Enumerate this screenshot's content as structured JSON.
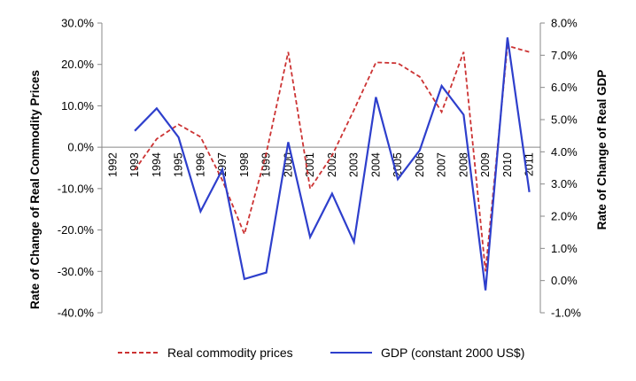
{
  "chart_data": {
    "type": "line",
    "categories": [
      "1992",
      "1993",
      "1994",
      "1995",
      "1996",
      "1997",
      "1998",
      "1999",
      "2000",
      "2001",
      "2002",
      "2003",
      "2004",
      "2005",
      "2006",
      "2007",
      "2008",
      "2009",
      "2010",
      "2011"
    ],
    "series": [
      {
        "name": "Real commodity prices",
        "axis": "left",
        "style": "dashed",
        "color": "#cc3333",
        "values": [
          null,
          -5.5,
          2.0,
          5.5,
          2.5,
          -8.0,
          -21.0,
          -1.5,
          23.0,
          -10.0,
          -2.0,
          9.0,
          20.5,
          20.3,
          17.0,
          8.5,
          23.0,
          -30.0,
          24.5,
          23.0
        ]
      },
      {
        "name": "GDP (constant 2000 US$)",
        "axis": "right",
        "style": "solid",
        "color": "#2e3fcc",
        "values": [
          null,
          4.65,
          5.35,
          4.45,
          2.15,
          3.45,
          0.05,
          0.25,
          4.3,
          1.35,
          2.7,
          1.2,
          5.7,
          3.15,
          4.05,
          6.05,
          5.15,
          -0.3,
          7.55,
          2.75
        ]
      }
    ],
    "y_left": {
      "label": "Rate of Change of Real Commodity Prices",
      "ylim": [
        -40,
        30
      ],
      "ticks": [
        30,
        20,
        10,
        0,
        -10,
        -20,
        -30,
        -40
      ],
      "tick_labels": [
        "30.0%",
        "20.0%",
        "10.0%",
        "0.0%",
        "-10.0%",
        "-20.0%",
        "-30.0%",
        "-40.0%"
      ]
    },
    "y_right": {
      "label": "Rate of Change of Real GDP",
      "ylim": [
        -1,
        8
      ],
      "ticks": [
        8,
        7,
        6,
        5,
        4,
        3,
        2,
        1,
        0,
        -1
      ],
      "tick_labels": [
        "8.0%",
        "7.0%",
        "6.0%",
        "5.0%",
        "4.0%",
        "3.0%",
        "2.0%",
        "1.0%",
        "0.0%",
        "-1.0%"
      ]
    },
    "legend_position": "bottom",
    "grid": false
  }
}
